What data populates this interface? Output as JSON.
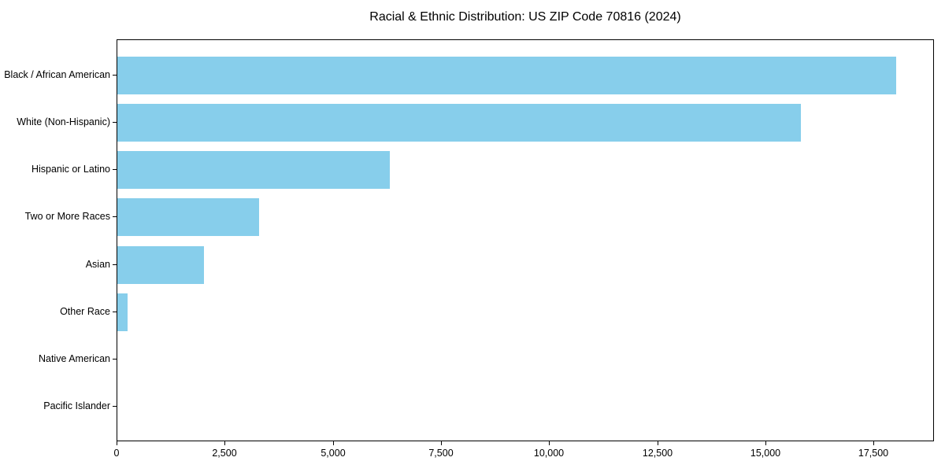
{
  "figure": {
    "background": "#ffffff"
  },
  "chart_data": {
    "type": "bar",
    "orientation": "horizontal",
    "title": "Racial & Ethnic Distribution: US ZIP Code 70816 (2024)",
    "categories": [
      "Black / African American",
      "White (Non-Hispanic)",
      "Hispanic or Latino",
      "Two or More Races",
      "Asian",
      "Other Race",
      "Native American",
      "Pacific Islander"
    ],
    "values": [
      18000,
      15800,
      6300,
      3280,
      2000,
      230,
      0,
      0
    ],
    "xlabel": "",
    "ylabel": "",
    "xlim": [
      0,
      18900
    ],
    "x_ticks": [
      0,
      2500,
      5000,
      7500,
      10000,
      12500,
      15000,
      17500
    ],
    "x_tick_labels": [
      "0",
      "2,500",
      "5,000",
      "7,500",
      "10,000",
      "12,500",
      "15,000",
      "17,500"
    ],
    "bar_color": "#87CEEB",
    "axis_color": "#000000",
    "text_color": "#000000",
    "grid": false,
    "legend_position": "none",
    "bar_height_fraction": 0.8
  }
}
